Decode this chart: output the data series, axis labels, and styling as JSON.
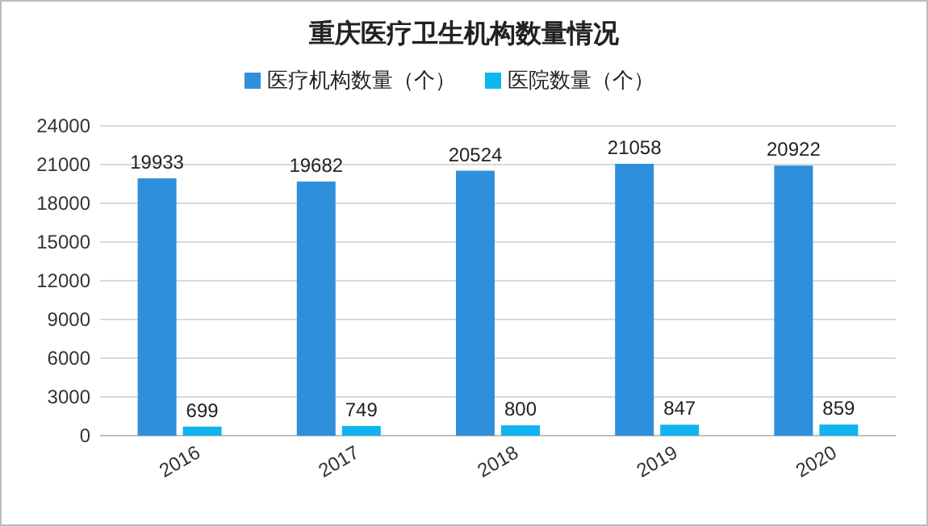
{
  "chart_data": {
    "type": "bar",
    "title": "重庆医疗卫生机构数量情况",
    "categories": [
      "2016",
      "2017",
      "2018",
      "2019",
      "2020"
    ],
    "series": [
      {
        "name": "医疗机构数量（个）",
        "color": "#2e8fdc",
        "values": [
          19933,
          19682,
          20524,
          21058,
          20922
        ]
      },
      {
        "name": "医院数量（个）",
        "color": "#0fb4f0",
        "values": [
          699,
          749,
          800,
          847,
          859
        ]
      }
    ],
    "ylim": [
      0,
      24000
    ],
    "yticks": [
      0,
      3000,
      6000,
      9000,
      12000,
      15000,
      18000,
      21000,
      24000
    ],
    "grid": "y",
    "legend": "top",
    "data_labels": true
  }
}
